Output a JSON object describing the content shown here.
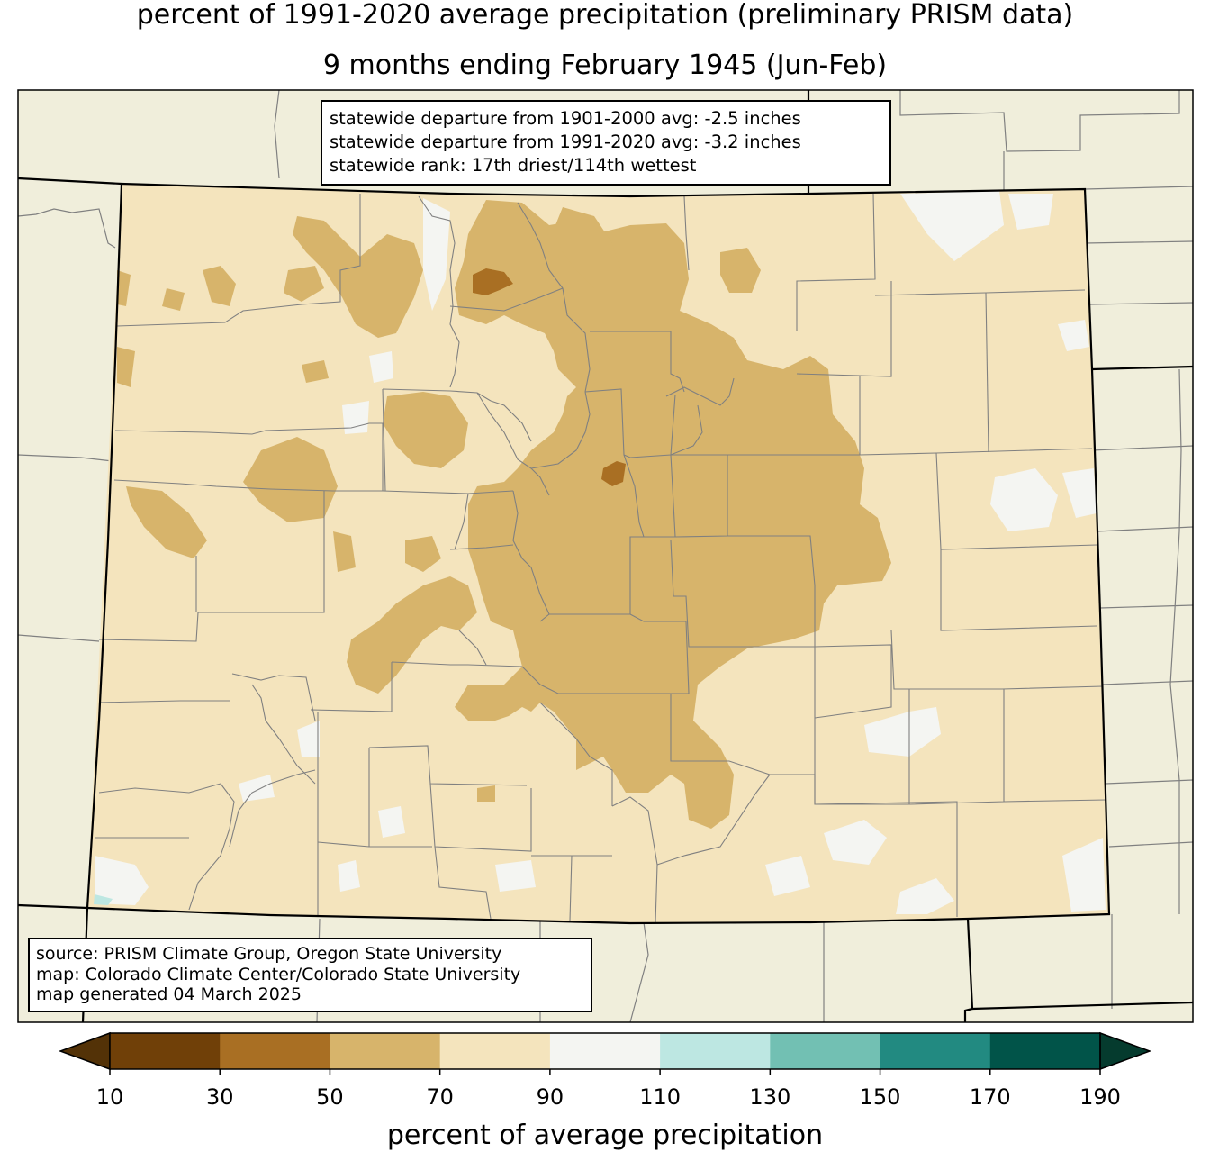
{
  "title": {
    "line1": "percent of 1991-2020 average precipitation (preliminary PRISM data)",
    "line2": "9 months ending February 1945 (Jun-Feb)"
  },
  "stats": {
    "line1": "statewide departure from 1901-2000 avg: -2.5 inches",
    "line2": "statewide departure from 1991-2020 avg: -3.2 inches",
    "line3": "statewide rank: 17th driest/114th wettest"
  },
  "source": {
    "line1": "source: PRISM Climate Group, Oregon State University",
    "line2": "map: Colorado Climate Center/Colorado State University",
    "line3": "map generated 04 March 2025"
  },
  "colorbar": {
    "label": "percent of average precipitation",
    "ticks": [
      "10",
      "30",
      "50",
      "70",
      "90",
      "110",
      "130",
      "150",
      "170",
      "190"
    ],
    "bins": [
      {
        "range": "10-30",
        "color": "#704008"
      },
      {
        "range": "30-50",
        "color": "#a96f23"
      },
      {
        "range": "50-70",
        "color": "#d7b46b"
      },
      {
        "range": "70-90",
        "color": "#f4e4bd"
      },
      {
        "range": "90-110",
        "color": "#f4f5f2"
      },
      {
        "range": "110-130",
        "color": "#bde7e2"
      },
      {
        "range": "130-150",
        "color": "#72c0b3"
      },
      {
        "range": "150-170",
        "color": "#228a81"
      },
      {
        "range": "170-190",
        "color": "#015449"
      }
    ],
    "under_color": "#533207",
    "over_color": "#053b2e"
  },
  "colors": {
    "background_land": "#f0eedb",
    "state_border": "#000000",
    "county_lines": "#808080"
  }
}
